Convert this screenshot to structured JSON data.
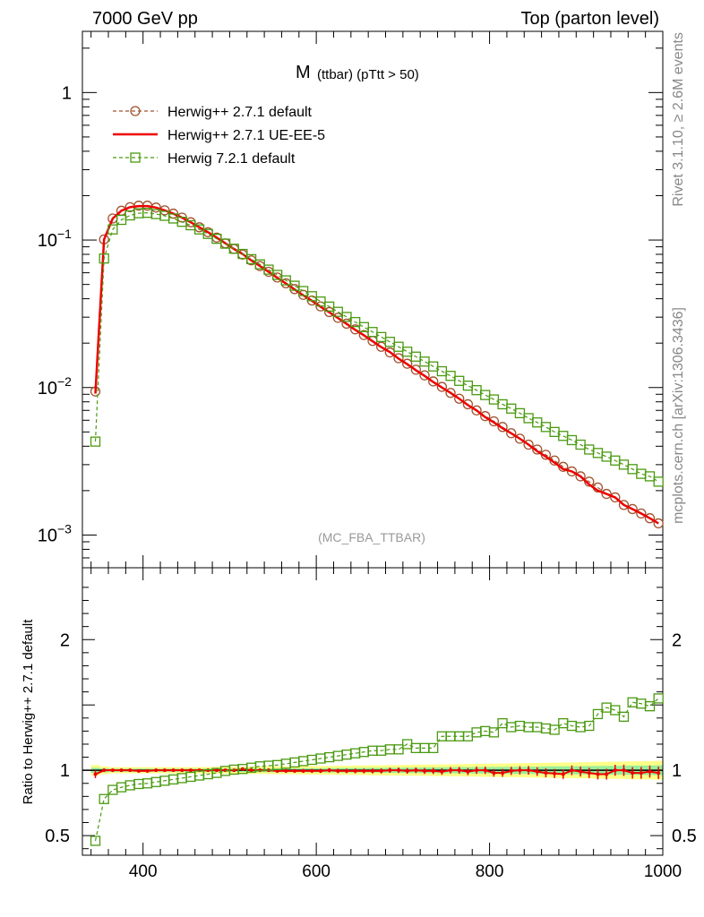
{
  "header": {
    "left": "7000 GeV pp",
    "right": "Top (parton level)"
  },
  "side_text": {
    "rivet": "Rivet 3.1.10, ≥ 2.6M events",
    "mcplots": "mcplots.cern.ch [arXiv:1306.3436]"
  },
  "chart_data": [
    {
      "type": "line",
      "title": "M",
      "title_sub": "(ttbar) (pTtt > 50)",
      "watermark": "(MC_FBA_TTBAR)",
      "yscale": "log",
      "xlim": [
        330,
        1000
      ],
      "ylim": [
        0.0006,
        2.6
      ],
      "y_ticks": [
        {
          "value": 1,
          "label": "1"
        },
        {
          "value": 0.1,
          "label": "10",
          "exp": "−1"
        },
        {
          "value": 0.01,
          "label": "10",
          "exp": "−2"
        },
        {
          "value": 0.001,
          "label": "10",
          "exp": "−3"
        }
      ],
      "legend_position": "top-left",
      "x": [
        345,
        355,
        365,
        375,
        385,
        395,
        405,
        415,
        425,
        435,
        445,
        455,
        465,
        475,
        485,
        495,
        505,
        515,
        525,
        535,
        545,
        555,
        565,
        575,
        585,
        595,
        605,
        615,
        625,
        635,
        645,
        655,
        665,
        675,
        685,
        695,
        705,
        715,
        725,
        735,
        745,
        755,
        765,
        775,
        785,
        795,
        805,
        815,
        825,
        835,
        845,
        855,
        865,
        875,
        885,
        895,
        905,
        915,
        925,
        935,
        945,
        955,
        965,
        975,
        985,
        995
      ],
      "series": [
        {
          "name": "Herwig++ 2.7.1 default",
          "color": "#a0522d",
          "style": "dashed",
          "marker": "circle",
          "values": [
            0.0094,
            0.101,
            0.14,
            0.158,
            0.167,
            0.171,
            0.171,
            0.166,
            0.159,
            0.151,
            0.142,
            0.132,
            0.122,
            0.113,
            0.104,
            0.095,
            0.087,
            0.0797,
            0.0728,
            0.0666,
            0.0609,
            0.0557,
            0.0509,
            0.0465,
            0.0425,
            0.0389,
            0.0355,
            0.0325,
            0.0297,
            0.0271,
            0.0248,
            0.0227,
            0.0207,
            0.0189,
            0.0173,
            0.0158,
            0.0145,
            0.0132,
            0.0121,
            0.011,
            0.0101,
            0.0092,
            0.0084,
            0.0077,
            0.007,
            0.0064,
            0.0059,
            0.0054,
            0.0049,
            0.0045,
            0.0041,
            0.0038,
            0.0035,
            0.0032,
            0.0029,
            0.0027,
            0.0025,
            0.0023,
            0.0021,
            0.0019,
            0.0018,
            0.0016,
            0.0015,
            0.0014,
            0.0013,
            0.0012
          ]
        },
        {
          "name": "Herwig++ 2.7.1 UE-EE-5",
          "color": "#ee0000",
          "style": "solid",
          "marker": "none",
          "values": [
            0.0091,
            0.101,
            0.14,
            0.158,
            0.167,
            0.17,
            0.17,
            0.166,
            0.159,
            0.151,
            0.142,
            0.132,
            0.122,
            0.113,
            0.104,
            0.095,
            0.087,
            0.0804,
            0.0728,
            0.0666,
            0.0609,
            0.0555,
            0.0507,
            0.0462,
            0.0422,
            0.0387,
            0.0353,
            0.0324,
            0.0296,
            0.027,
            0.0246,
            0.0226,
            0.0206,
            0.0188,
            0.0174,
            0.0157,
            0.0144,
            0.0131,
            0.012,
            0.0109,
            0.01,
            0.0092,
            0.0084,
            0.0076,
            0.007,
            0.0063,
            0.0058,
            0.0053,
            0.0049,
            0.0045,
            0.0041,
            0.0037,
            0.0034,
            0.0031,
            0.0028,
            0.0027,
            0.0025,
            0.0022,
            0.002,
            0.0019,
            0.0018,
            0.0016,
            0.0015,
            0.0014,
            0.0013,
            0.0012
          ]
        },
        {
          "name": "Herwig 7.2.1 default",
          "color": "#4a9a10",
          "style": "dashed",
          "marker": "square",
          "values": [
            0.0043,
            0.075,
            0.118,
            0.137,
            0.147,
            0.152,
            0.153,
            0.15,
            0.146,
            0.14,
            0.133,
            0.126,
            0.118,
            0.11,
            0.102,
            0.0945,
            0.0873,
            0.0805,
            0.0742,
            0.0684,
            0.063,
            0.058,
            0.0533,
            0.049,
            0.0451,
            0.0416,
            0.0383,
            0.0354,
            0.0326,
            0.0301,
            0.0278,
            0.0257,
            0.0238,
            0.022,
            0.0204,
            0.0189,
            0.0175,
            0.0162,
            0.015,
            0.0139,
            0.0129,
            0.012,
            0.0111,
            0.0103,
            0.0096,
            0.0089,
            0.0083,
            0.0077,
            0.0072,
            0.0067,
            0.0062,
            0.0058,
            0.0054,
            0.005,
            0.0047,
            0.0044,
            0.0041,
            0.0038,
            0.0036,
            0.0034,
            0.0032,
            0.003,
            0.0028,
            0.0026,
            0.0025,
            0.0023
          ]
        }
      ]
    },
    {
      "type": "line",
      "ylabel": "Ratio to Herwig++ 2.7.1 default",
      "xlim": [
        330,
        1000
      ],
      "ylim": [
        0.35,
        2.55
      ],
      "x_ticks": [
        400,
        600,
        800,
        1000
      ],
      "y_ticks": [
        0.5,
        1,
        2
      ],
      "y_ticks_right": [
        0.5,
        1,
        2
      ],
      "reference_line": 1,
      "band_green_halfwidth": [
        0.02,
        0.015,
        0.012,
        0.012,
        0.012,
        0.012,
        0.012,
        0.012,
        0.012,
        0.012,
        0.012,
        0.012,
        0.012,
        0.012,
        0.013,
        0.013,
        0.013,
        0.013,
        0.014,
        0.014,
        0.014,
        0.015,
        0.015,
        0.015,
        0.016,
        0.016,
        0.016,
        0.017,
        0.017,
        0.018,
        0.018,
        0.018,
        0.019,
        0.019,
        0.02,
        0.02,
        0.021,
        0.021,
        0.022,
        0.022,
        0.023,
        0.023,
        0.024,
        0.024,
        0.025,
        0.025,
        0.026,
        0.026,
        0.027,
        0.027,
        0.028,
        0.028,
        0.029,
        0.03,
        0.03,
        0.031,
        0.032,
        0.032,
        0.033,
        0.034,
        0.034,
        0.035,
        0.036,
        0.036,
        0.037,
        0.038
      ],
      "band_yellow_halfwidth": [
        0.04,
        0.03,
        0.024,
        0.024,
        0.024,
        0.024,
        0.024,
        0.024,
        0.024,
        0.024,
        0.024,
        0.024,
        0.025,
        0.025,
        0.026,
        0.026,
        0.027,
        0.027,
        0.028,
        0.028,
        0.029,
        0.03,
        0.03,
        0.031,
        0.032,
        0.032,
        0.033,
        0.034,
        0.035,
        0.035,
        0.036,
        0.037,
        0.038,
        0.039,
        0.04,
        0.04,
        0.041,
        0.042,
        0.043,
        0.044,
        0.045,
        0.046,
        0.047,
        0.048,
        0.049,
        0.05,
        0.051,
        0.052,
        0.053,
        0.054,
        0.055,
        0.056,
        0.057,
        0.058,
        0.059,
        0.06,
        0.061,
        0.062,
        0.064,
        0.065,
        0.066,
        0.067,
        0.068,
        0.069,
        0.07,
        0.072
      ],
      "series": [
        {
          "name": "Herwig++ 2.7.1 UE-EE-5",
          "color": "#ee0000",
          "values": [
            0.97,
            1.0,
            1.0,
            1.0,
            1.0,
            0.995,
            0.995,
            1.0,
            1.0,
            1.0,
            1.0,
            1.0,
            1.0,
            1.0,
            1.0,
            1.0,
            1.0,
            1.01,
            1.0,
            1.0,
            1.0,
            0.995,
            0.995,
            0.995,
            0.995,
            0.995,
            0.995,
            1.0,
            0.995,
            0.995,
            0.995,
            0.995,
            0.995,
            0.995,
            1.0,
            1.0,
            0.995,
            1.0,
            0.995,
            0.995,
            0.99,
            1.0,
            1.0,
            0.99,
            1.0,
            1.0,
            0.98,
            0.98,
            0.995,
            1.0,
            1.0,
            0.99,
            0.98,
            0.975,
            0.97,
            1.0,
            0.99,
            0.98,
            0.97,
            0.97,
            1.0,
            1.0,
            0.98,
            0.98,
            0.99,
            0.98
          ],
          "error": [
            0.03,
            0.012,
            0.01,
            0.01,
            0.01,
            0.01,
            0.01,
            0.01,
            0.01,
            0.01,
            0.01,
            0.01,
            0.01,
            0.01,
            0.011,
            0.011,
            0.012,
            0.012,
            0.012,
            0.013,
            0.013,
            0.014,
            0.014,
            0.014,
            0.015,
            0.015,
            0.016,
            0.016,
            0.017,
            0.017,
            0.018,
            0.018,
            0.019,
            0.02,
            0.02,
            0.021,
            0.022,
            0.022,
            0.023,
            0.024,
            0.025,
            0.025,
            0.026,
            0.027,
            0.028,
            0.028,
            0.029,
            0.03,
            0.031,
            0.032,
            0.033,
            0.033,
            0.034,
            0.035,
            0.036,
            0.037,
            0.038,
            0.039,
            0.04,
            0.041,
            0.042,
            0.043,
            0.044,
            0.045,
            0.046,
            0.047
          ]
        },
        {
          "name": "Herwig 7.2.1 default",
          "color": "#4a9a10",
          "values": [
            0.46,
            0.78,
            0.85,
            0.87,
            0.885,
            0.895,
            0.9,
            0.91,
            0.92,
            0.93,
            0.94,
            0.95,
            0.96,
            0.97,
            0.98,
            0.995,
            1.005,
            1.01,
            1.02,
            1.03,
            1.035,
            1.04,
            1.05,
            1.06,
            1.07,
            1.08,
            1.09,
            1.1,
            1.11,
            1.12,
            1.13,
            1.14,
            1.15,
            1.15,
            1.16,
            1.16,
            1.2,
            1.17,
            1.17,
            1.17,
            1.26,
            1.26,
            1.26,
            1.26,
            1.29,
            1.3,
            1.29,
            1.36,
            1.33,
            1.34,
            1.33,
            1.33,
            1.32,
            1.31,
            1.36,
            1.34,
            1.33,
            1.34,
            1.43,
            1.48,
            1.46,
            1.41,
            1.52,
            1.51,
            1.49,
            1.55
          ]
        }
      ]
    }
  ]
}
